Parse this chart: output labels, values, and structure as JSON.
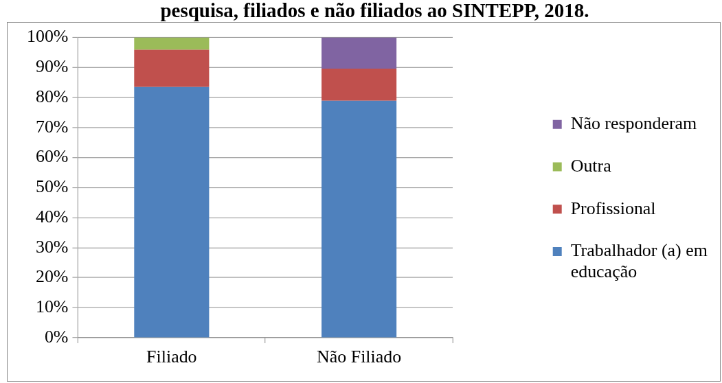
{
  "chart_data": {
    "type": "bar",
    "title": "pesquisa, filiados e não filiados ao SINTEPP, 2018.",
    "categories": [
      "Filiado",
      "Não Filiado"
    ],
    "stacked": true,
    "series": [
      {
        "name": "Trabalhador (a) em educação",
        "color": "#4f81bd",
        "values": [
          83.5,
          78.9
        ]
      },
      {
        "name": "Profissional",
        "color": "#c0504d",
        "values": [
          12.4,
          10.7
        ]
      },
      {
        "name": "Outra",
        "color": "#9bbb59",
        "values": [
          4.1,
          0
        ]
      },
      {
        "name": "Não responderam",
        "color": "#8064a2",
        "values": [
          0,
          10.4
        ]
      }
    ],
    "ylim": [
      0,
      100
    ],
    "yticks": [
      {
        "value": 0,
        "label": "0%"
      },
      {
        "value": 10,
        "label": "10%"
      },
      {
        "value": 20,
        "label": "20%"
      },
      {
        "value": 30,
        "label": "30%"
      },
      {
        "value": 40,
        "label": "40%"
      },
      {
        "value": 50,
        "label": "50%"
      },
      {
        "value": 60,
        "label": "60%"
      },
      {
        "value": 70,
        "label": "70%"
      },
      {
        "value": 80,
        "label": "80%"
      },
      {
        "value": 90,
        "label": "90%"
      },
      {
        "value": 100,
        "label": "100%"
      }
    ],
    "grid": "y",
    "legend": "right"
  }
}
